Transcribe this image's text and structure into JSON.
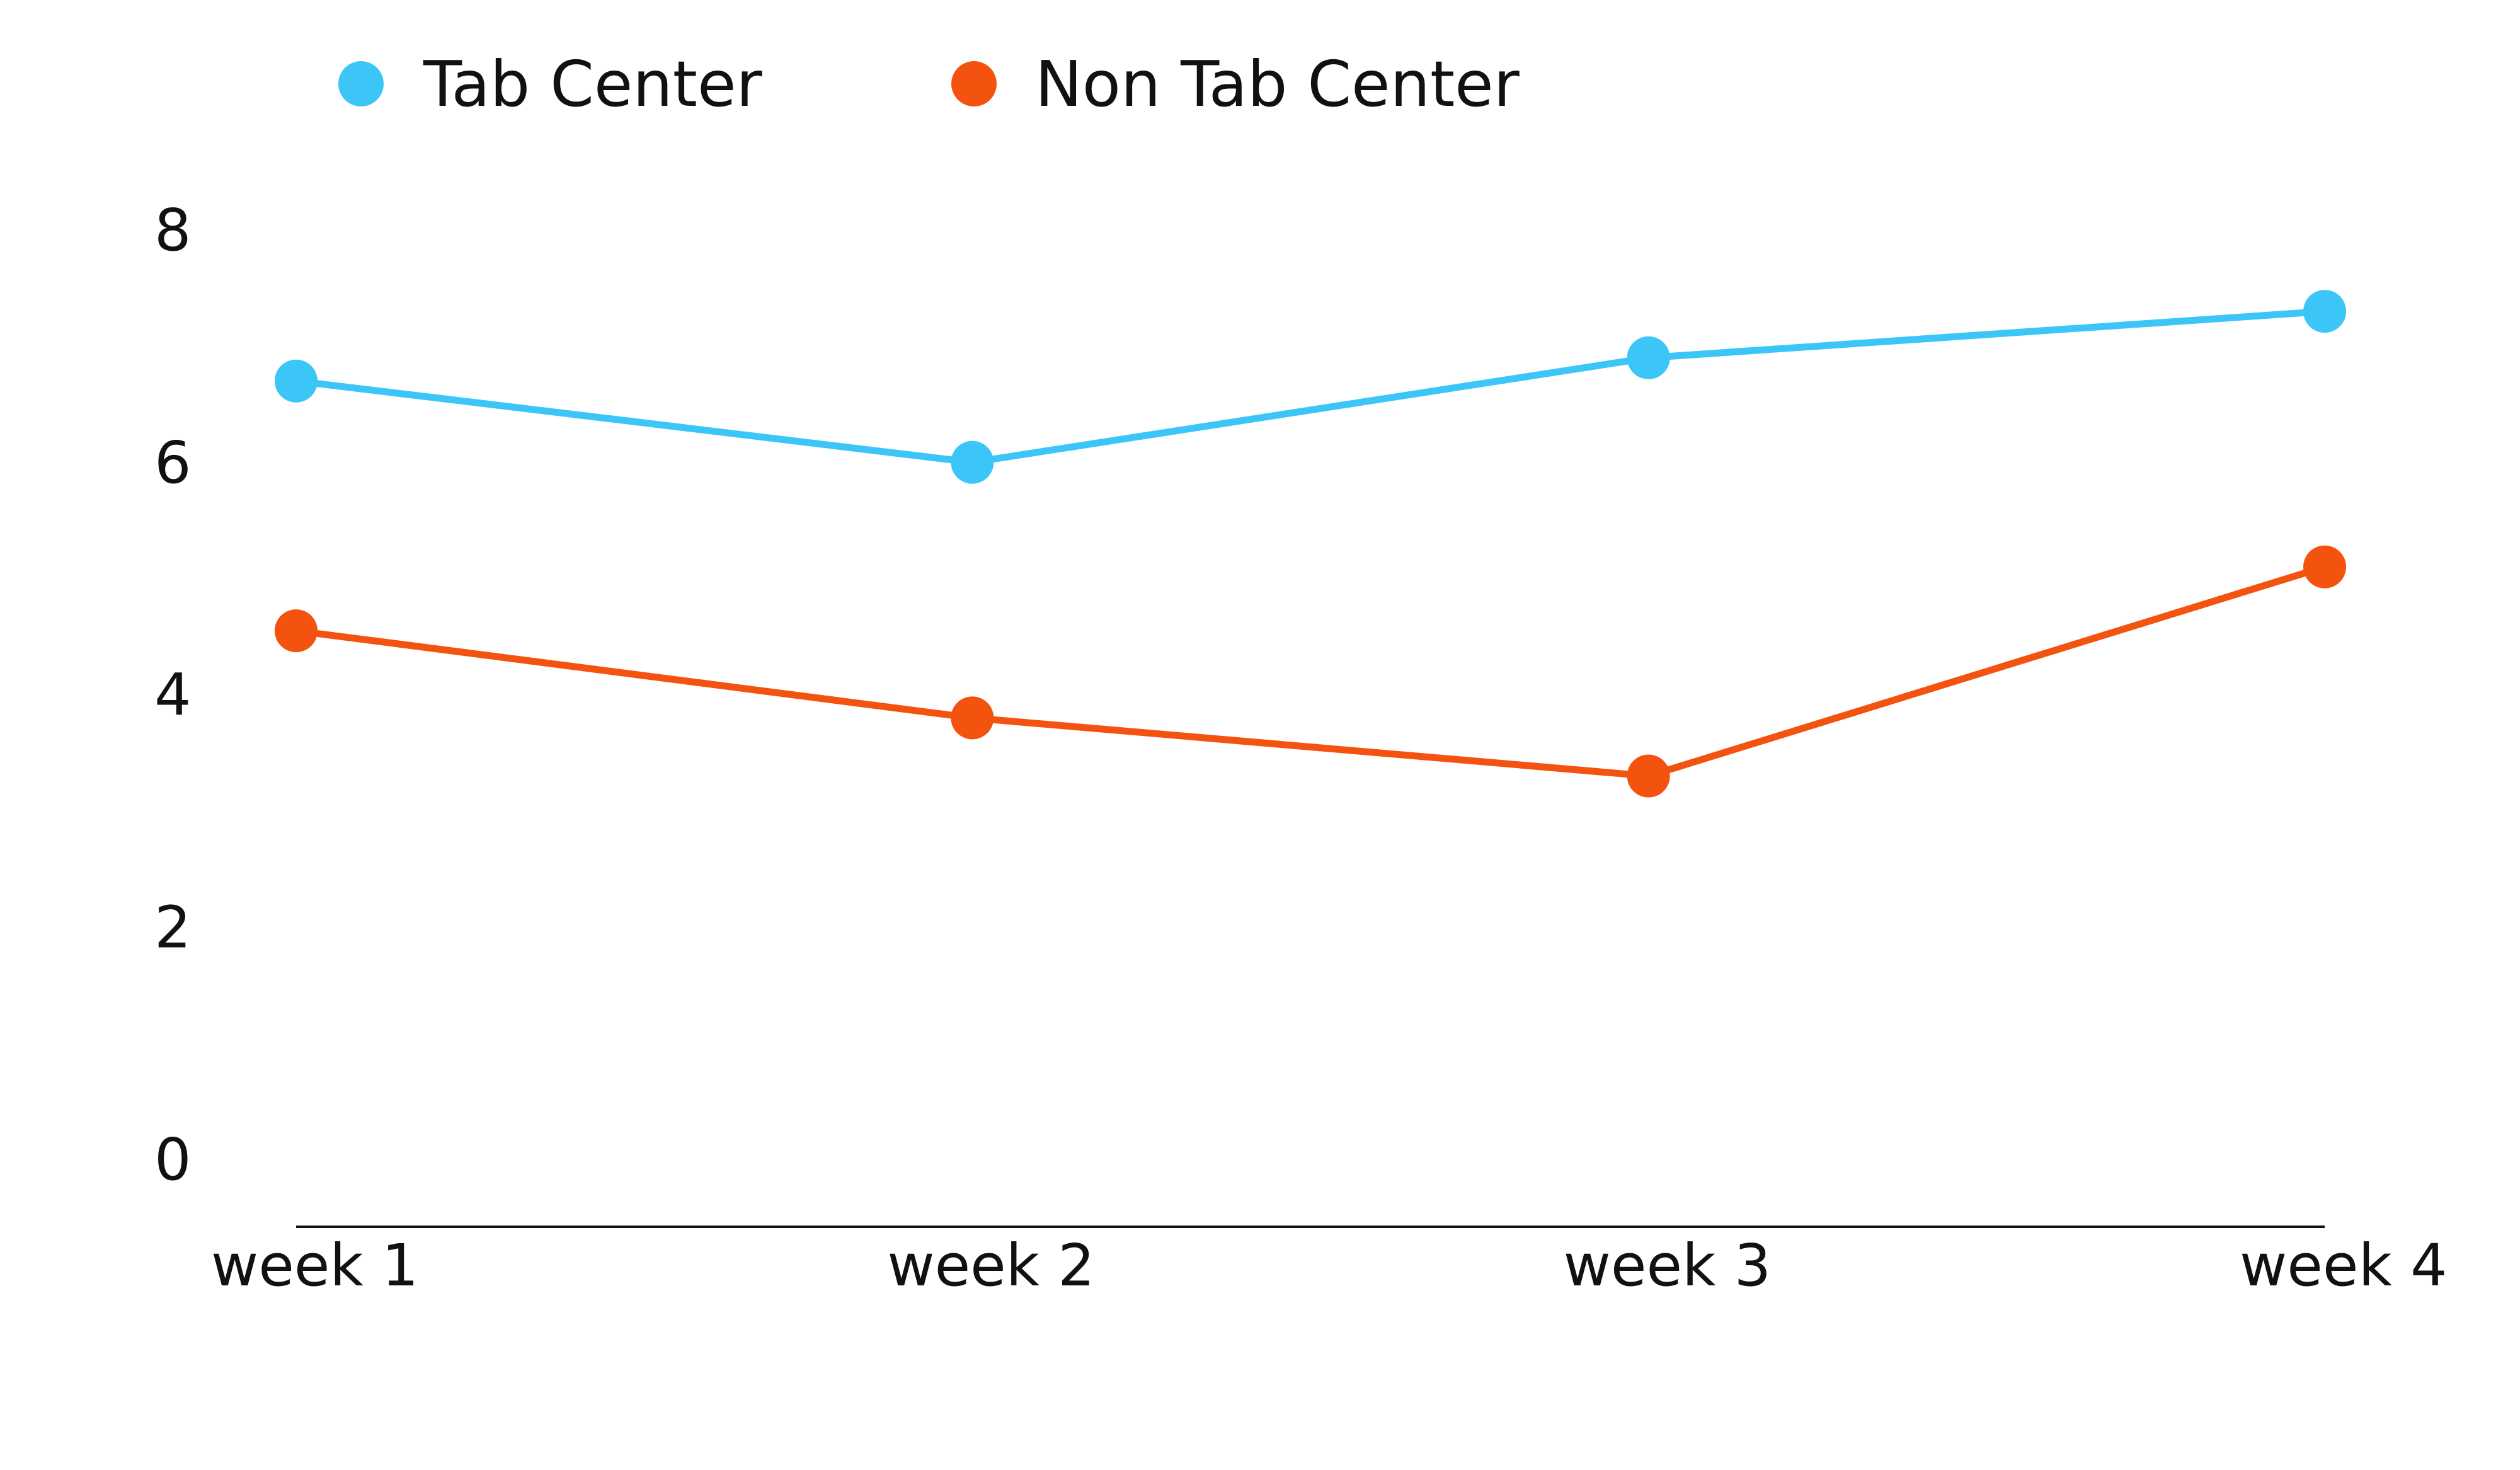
{
  "chart_data": {
    "type": "line",
    "title": "",
    "xlabel": "",
    "ylabel": "",
    "categories": [
      "week 1",
      "week 2",
      "week 3",
      "week 4"
    ],
    "ylim": [
      0,
      8
    ],
    "y_ticks": [
      "0",
      "2",
      "4",
      "6",
      "8"
    ],
    "grid": false,
    "legend": "top-left",
    "series": [
      {
        "name": "Tab Center",
        "color": "#3cc6f8",
        "values": [
          6.7,
          6.0,
          6.9,
          7.3
        ]
      },
      {
        "name": "Non Tab Center",
        "color": "#f4520f",
        "values": [
          4.55,
          3.8,
          3.3,
          5.1
        ]
      }
    ]
  }
}
